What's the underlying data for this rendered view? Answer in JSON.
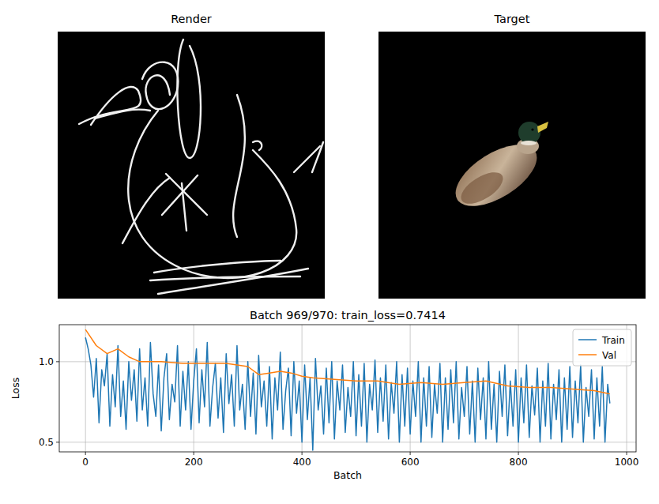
{
  "images": {
    "render": {
      "title": "Render"
    },
    "target": {
      "title": "Target"
    }
  },
  "chart_data": {
    "type": "line",
    "title": "Batch 969/970: train_loss=0.7414",
    "x_label": "Batch",
    "y_label": "Loss",
    "xlim": [
      -48.45,
      1017.45
    ],
    "ylim": [
      0.44,
      1.23
    ],
    "xticks": [
      0,
      200,
      400,
      600,
      800,
      1000
    ],
    "yticks": [
      0.5,
      {
        "value": 1,
        "label": "1.0"
      }
    ],
    "grid": true,
    "legend": "upper right",
    "series": [
      {
        "name": "Train",
        "color": "#1f77b4",
        "x": [
          0,
          5,
          10,
          15,
          20,
          25,
          30,
          35,
          40,
          45,
          50,
          55,
          60,
          65,
          70,
          75,
          80,
          85,
          90,
          95,
          100,
          105,
          110,
          115,
          120,
          125,
          130,
          135,
          140,
          145,
          150,
          155,
          160,
          165,
          170,
          175,
          180,
          185,
          190,
          195,
          200,
          205,
          210,
          215,
          220,
          225,
          230,
          235,
          240,
          245,
          250,
          255,
          260,
          265,
          270,
          275,
          280,
          285,
          290,
          295,
          300,
          305,
          310,
          315,
          320,
          325,
          330,
          335,
          340,
          345,
          350,
          355,
          360,
          365,
          370,
          375,
          380,
          385,
          390,
          395,
          400,
          405,
          410,
          415,
          420,
          425,
          430,
          435,
          440,
          445,
          450,
          455,
          460,
          465,
          470,
          475,
          480,
          485,
          490,
          495,
          500,
          505,
          510,
          515,
          520,
          525,
          530,
          535,
          540,
          545,
          550,
          555,
          560,
          565,
          570,
          575,
          580,
          585,
          590,
          595,
          600,
          605,
          610,
          615,
          620,
          625,
          630,
          635,
          640,
          645,
          650,
          655,
          660,
          665,
          670,
          675,
          680,
          685,
          690,
          695,
          700,
          705,
          710,
          715,
          720,
          725,
          730,
          735,
          740,
          745,
          750,
          755,
          760,
          765,
          770,
          775,
          780,
          785,
          790,
          795,
          800,
          805,
          810,
          815,
          820,
          825,
          830,
          835,
          840,
          845,
          850,
          855,
          860,
          865,
          870,
          875,
          880,
          885,
          890,
          895,
          900,
          905,
          910,
          915,
          920,
          925,
          930,
          935,
          940,
          945,
          950,
          955,
          960,
          965,
          969
        ],
        "values": [
          1.15,
          1.08,
          0.98,
          0.78,
          1.02,
          0.62,
          0.95,
          0.85,
          1.05,
          0.6,
          0.92,
          0.72,
          1.1,
          0.66,
          0.88,
          0.58,
          1.0,
          0.76,
          0.95,
          0.63,
          1.08,
          0.7,
          0.9,
          0.6,
          1.12,
          0.8,
          0.66,
          0.98,
          0.57,
          0.9,
          1.05,
          0.64,
          0.86,
          0.75,
          1.1,
          0.6,
          0.94,
          0.7,
          1.0,
          0.58,
          0.88,
          1.08,
          0.62,
          0.95,
          0.72,
          1.12,
          0.6,
          0.84,
          0.99,
          0.65,
          0.9,
          0.56,
          1.05,
          0.74,
          0.92,
          0.6,
          1.1,
          0.7,
          0.86,
          0.58,
          1.0,
          0.66,
          0.93,
          0.55,
          1.04,
          0.72,
          0.88,
          0.6,
          0.97,
          0.52,
          0.9,
          0.7,
          1.06,
          0.58,
          0.82,
          0.96,
          0.54,
          1.0,
          0.68,
          0.88,
          0.5,
          0.98,
          0.64,
          0.9,
          0.45,
          1.02,
          0.7,
          0.85,
          0.55,
          0.96,
          0.62,
          1.0,
          0.52,
          0.88,
          0.7,
          0.98,
          0.56,
          0.84,
          0.66,
          1.0,
          0.54,
          0.92,
          0.6,
          0.99,
          0.5,
          0.86,
          0.7,
          1.01,
          0.56,
          0.9,
          0.63,
          0.98,
          0.52,
          0.87,
          0.68,
          1.0,
          0.5,
          0.92,
          0.6,
          0.96,
          0.55,
          0.88,
          0.66,
          1.0,
          0.5,
          0.9,
          0.6,
          0.97,
          0.53,
          0.86,
          0.68,
          0.99,
          0.5,
          0.9,
          0.58,
          0.95,
          0.62,
          1.0,
          0.52,
          0.84,
          0.66,
          0.97,
          0.55,
          0.88,
          0.5,
          0.96,
          0.64,
          0.9,
          0.52,
          1.0,
          0.58,
          0.86,
          0.5,
          0.94,
          0.66,
          0.98,
          0.54,
          0.88,
          0.6,
          0.95,
          0.5,
          0.9,
          0.62,
          0.98,
          0.53,
          0.85,
          0.67,
          0.96,
          0.5,
          0.88,
          0.6,
          0.99,
          0.52,
          0.86,
          0.64,
          0.95,
          0.5,
          0.9,
          0.58,
          0.97,
          0.53,
          0.88,
          0.62,
          0.98,
          0.5,
          0.84,
          0.66,
          0.95,
          0.52,
          0.9,
          0.6,
          0.97,
          0.5,
          0.86,
          0.7414
        ]
      },
      {
        "name": "Val",
        "color": "#ff7f0e",
        "x": [
          0,
          20,
          40,
          60,
          80,
          100,
          140,
          180,
          220,
          260,
          300,
          320,
          340,
          360,
          380,
          400,
          420,
          460,
          500,
          540,
          580,
          620,
          660,
          700,
          740,
          780,
          820,
          860,
          900,
          940,
          969
        ],
        "values": [
          1.2,
          1.1,
          1.05,
          1.08,
          1.03,
          1.0,
          1.0,
          0.99,
          0.99,
          0.99,
          0.97,
          0.92,
          0.93,
          0.94,
          0.93,
          0.91,
          0.9,
          0.89,
          0.88,
          0.88,
          0.86,
          0.87,
          0.86,
          0.87,
          0.88,
          0.85,
          0.84,
          0.84,
          0.83,
          0.82,
          0.8
        ]
      }
    ]
  }
}
